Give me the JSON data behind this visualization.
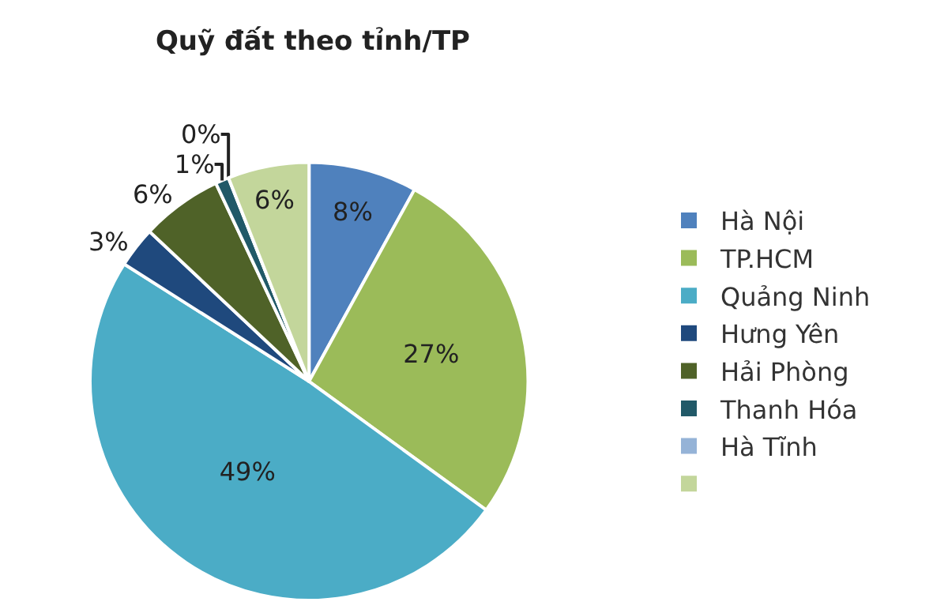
{
  "chart_data": {
    "type": "pie",
    "title": "Quỹ đất theo tỉnh/TP",
    "categories": [
      "Hà Nội",
      "TP.HCM",
      "Quảng Ninh",
      "Hưng Yên",
      "Hải Phòng",
      "Thanh Hóa",
      "Hà Tĩnh",
      null
    ],
    "values": [
      8,
      27,
      49,
      3,
      6,
      1,
      0,
      6
    ],
    "value_labels": [
      "8%",
      "27%",
      "49%",
      "3%",
      "6%",
      "1%",
      "0%",
      "6%"
    ],
    "colors": [
      "#4f81bd",
      "#9bbb59",
      "#4bacc6",
      "#1f497d",
      "#4f6228",
      "#215968",
      "#95b3d7",
      "#c3d69b"
    ],
    "legend": "right"
  }
}
